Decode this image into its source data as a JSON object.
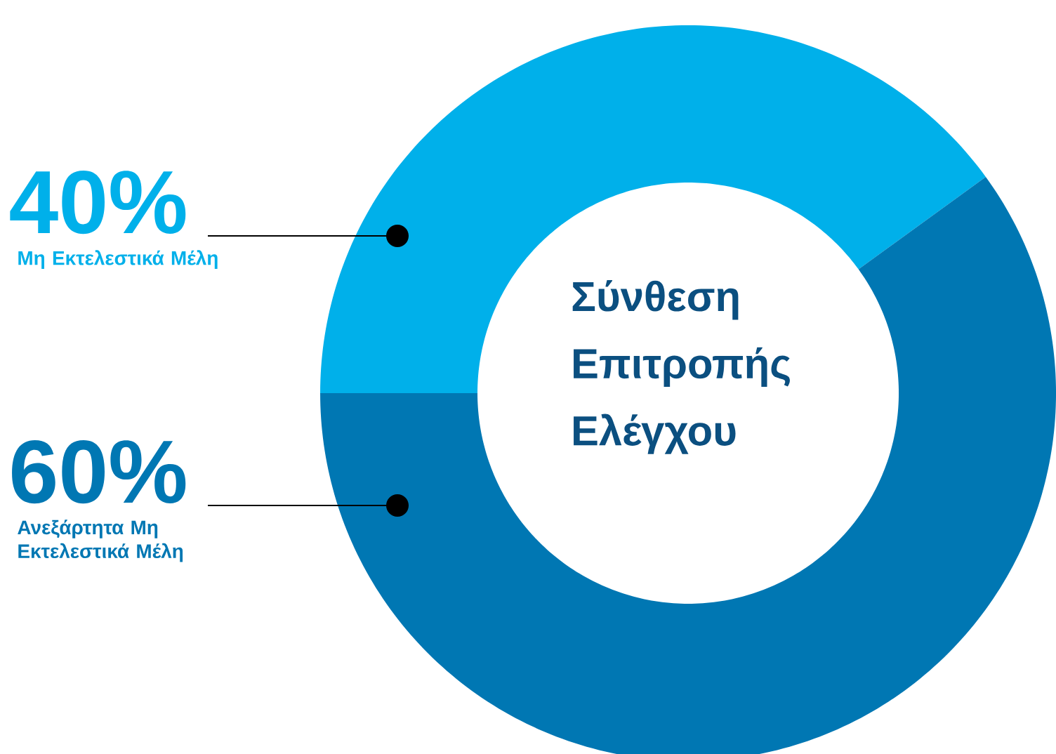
{
  "chart_data": {
    "type": "donut",
    "title": "Σύνθεση Επιτροπής Ελέγχου",
    "categories": [
      "Μη Εκτελεστικά Μέλη",
      "Ανεξάρτητα Μη Εκτελεστικά Μέλη"
    ],
    "values": [
      40,
      60
    ],
    "colors": [
      "#00b0ea",
      "#0077b3"
    ],
    "value_labels": [
      "40%",
      "60%"
    ]
  }
}
